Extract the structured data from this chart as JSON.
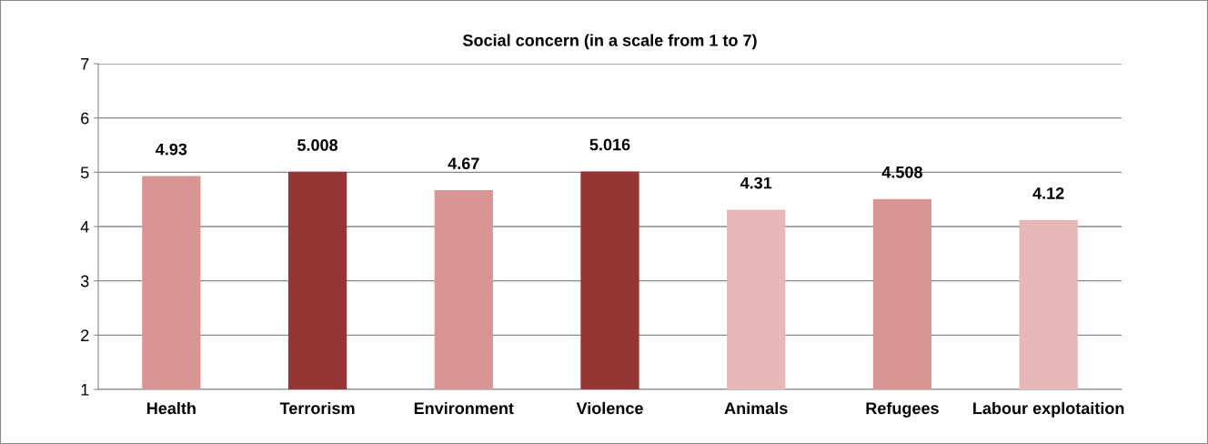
{
  "chart_data": {
    "type": "bar",
    "title": "Social concern (in a scale from 1 to 7)",
    "categories": [
      "Health",
      "Terrorism",
      "Environment",
      "Violence",
      "Animals",
      "Refugees",
      "Labour explotaition"
    ],
    "values": [
      4.93,
      5.008,
      4.67,
      5.016,
      4.31,
      4.508,
      4.12
    ],
    "colors": [
      "#d99594",
      "#943634",
      "#d99594",
      "#943634",
      "#e6b8b7",
      "#d99594",
      "#e6b8b7"
    ],
    "ylim": [
      1,
      7
    ],
    "yticks": [
      1,
      2,
      3,
      4,
      5,
      6,
      7
    ],
    "grid": "y",
    "data_labels": true
  }
}
